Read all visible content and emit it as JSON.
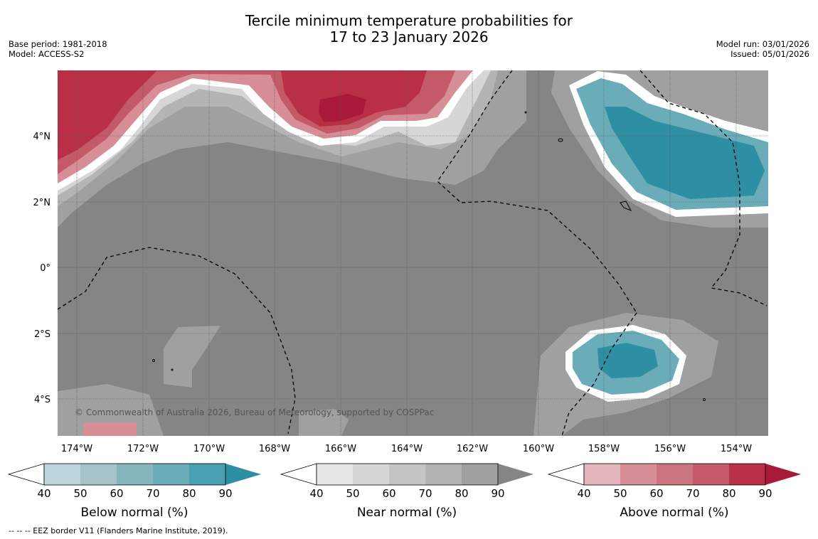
{
  "title": {
    "line1": "Tercile minimum temperature probabilities for",
    "line2": "17 to 23 January 2026"
  },
  "meta_left": {
    "base_period": "Base period: 1981-2018",
    "model": "Model: ACCESS-S2"
  },
  "meta_right": {
    "model_run": "Model run: 03/01/2026",
    "issued": "Issued: 05/01/2026"
  },
  "map": {
    "lon_labels": [
      "174°W",
      "172°W",
      "170°W",
      "168°W",
      "166°W",
      "164°W",
      "162°W",
      "160°W",
      "158°W",
      "156°W",
      "154°W"
    ],
    "lat_labels": [
      "4°N",
      "2°N",
      "0°",
      "2°S",
      "4°S"
    ],
    "copyright": "© Commonwealth of Australia 2026, Bureau of Meteorology, supported by COSPPac"
  },
  "legends": [
    {
      "label": "Below normal (%)",
      "ticks": [
        "40",
        "50",
        "60",
        "70",
        "80",
        "90"
      ],
      "colors": [
        "#bcd5db",
        "#a4c4c9",
        "#87b5bd",
        "#6aacb8",
        "#48a0b2",
        "#2e8fa4"
      ]
    },
    {
      "label": "Near normal (%)",
      "ticks": [
        "40",
        "50",
        "60",
        "70",
        "80",
        "90"
      ],
      "colors": [
        "#e6e6e6",
        "#d6d6d6",
        "#c4c4c4",
        "#b4b4b4",
        "#a0a0a0",
        "#858585"
      ]
    },
    {
      "label": "Above normal (%)",
      "ticks": [
        "40",
        "50",
        "60",
        "70",
        "80",
        "90"
      ],
      "colors": [
        "#e3b7bd",
        "#d78e97",
        "#cb7580",
        "#c45967",
        "#b82f46",
        "#a8193a"
      ]
    }
  ],
  "footnote": "--  --  -- EEZ border V11 (Flanders Marine Institute, 2019)."
}
